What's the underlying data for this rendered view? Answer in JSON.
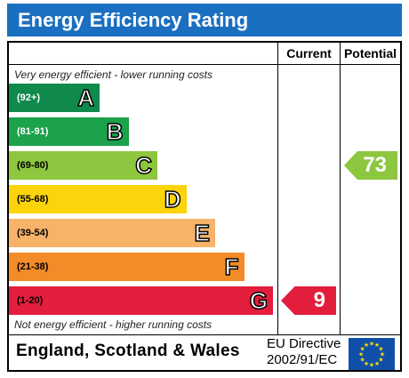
{
  "header": {
    "title": "Energy Efficiency Rating"
  },
  "columns": {
    "current": "Current",
    "potential": "Potential"
  },
  "captions": {
    "top": "Very energy efficient - lower running costs",
    "bottom": "Not energy efficient - higher running costs"
  },
  "footer": {
    "region": "England, Scotland & Wales",
    "directive_line1": "EU Directive",
    "directive_line2": "2002/91/EC"
  },
  "chart_data": {
    "type": "bar",
    "title": "Energy Efficiency Rating",
    "bands": [
      {
        "letter": "A",
        "range": "(92+)",
        "color": "#0f8a4c",
        "light_text": true
      },
      {
        "letter": "B",
        "range": "(81-91)",
        "color": "#1ba24a",
        "light_text": true
      },
      {
        "letter": "C",
        "range": "(69-80)",
        "color": "#8dc63f",
        "light_text": false
      },
      {
        "letter": "D",
        "range": "(55-68)",
        "color": "#fbd40b",
        "light_text": false
      },
      {
        "letter": "E",
        "range": "(39-54)",
        "color": "#f7b36a",
        "light_text": false
      },
      {
        "letter": "F",
        "range": "(21-38)",
        "color": "#f28c29",
        "light_text": false
      },
      {
        "letter": "G",
        "range": "(1-20)",
        "color": "#e31d3c",
        "light_text": false
      }
    ],
    "current": {
      "value": 9,
      "band": "G",
      "color": "#e31d3c"
    },
    "potential": {
      "value": 73,
      "band": "C",
      "color": "#8dc63f"
    }
  }
}
